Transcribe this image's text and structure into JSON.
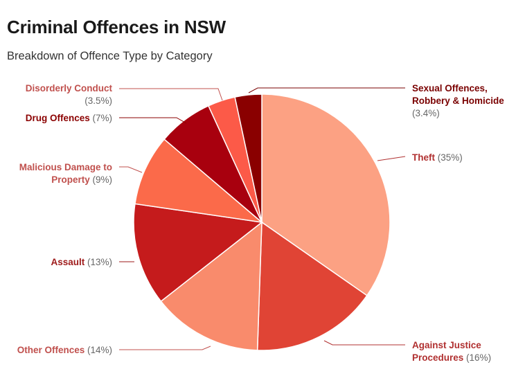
{
  "header": {
    "title": "Criminal Offences in NSW",
    "subtitle": "Breakdown of Offence Type by Category"
  },
  "chart_data": {
    "type": "pie",
    "title": "Criminal Offences in NSW",
    "subtitle": "Breakdown of Offence Type by Category",
    "start_angle_deg": 0,
    "direction": "clockwise",
    "slices": [
      {
        "label": "Theft",
        "value": 35,
        "pct_label": "(35%)",
        "color": "#fca183",
        "label_color": "#b03030",
        "lines": [
          [
            "Theft",
            "(35%)"
          ]
        ]
      },
      {
        "label": "Against Justice Procedures",
        "value": 16,
        "pct_label": "(16%)",
        "color": "#e04435",
        "label_color": "#b03030",
        "lines": [
          [
            "Against Justice"
          ],
          [
            "Procedures",
            "(16%)"
          ]
        ]
      },
      {
        "label": "Other Offences",
        "value": 14,
        "pct_label": "(14%)",
        "color": "#f98b6c",
        "label_color": "#c0504d",
        "lines": [
          [
            "Other Offences",
            "(14%)"
          ]
        ]
      },
      {
        "label": "Assault",
        "value": 13,
        "pct_label": "(13%)",
        "color": "#c51b1c",
        "label_color": "#9e1a1a",
        "lines": [
          [
            "Assault",
            "(13%)"
          ]
        ]
      },
      {
        "label": "Malicious Damage to Property",
        "value": 9,
        "pct_label": "(9%)",
        "color": "#fb6a4a",
        "label_color": "#c0504d",
        "lines": [
          [
            "Malicious Damage to"
          ],
          [
            "Property",
            "(9%)"
          ]
        ]
      },
      {
        "label": "Drug Offences",
        "value": 7,
        "pct_label": "(7%)",
        "color": "#a8000e",
        "label_color": "#8b0000",
        "lines": [
          [
            "Drug Offences",
            "(7%)"
          ]
        ]
      },
      {
        "label": "Disorderly Conduct",
        "value": 3.5,
        "pct_label": "(3.5%)",
        "color": "#fc5a48",
        "label_color": "#c0504d",
        "lines": [
          [
            "Disorderly Conduct"
          ],
          [
            "(3.5%)"
          ]
        ]
      },
      {
        "label": "Sexual Offences, Robbery & Homicide",
        "value": 3.4,
        "pct_label": "(3.4%)",
        "color": "#8a0000",
        "label_color": "#7a0000",
        "lines": [
          [
            "Sexual Offences,"
          ],
          [
            "Robbery & Homicide"
          ],
          [
            "(3.4%)"
          ]
        ]
      }
    ]
  }
}
